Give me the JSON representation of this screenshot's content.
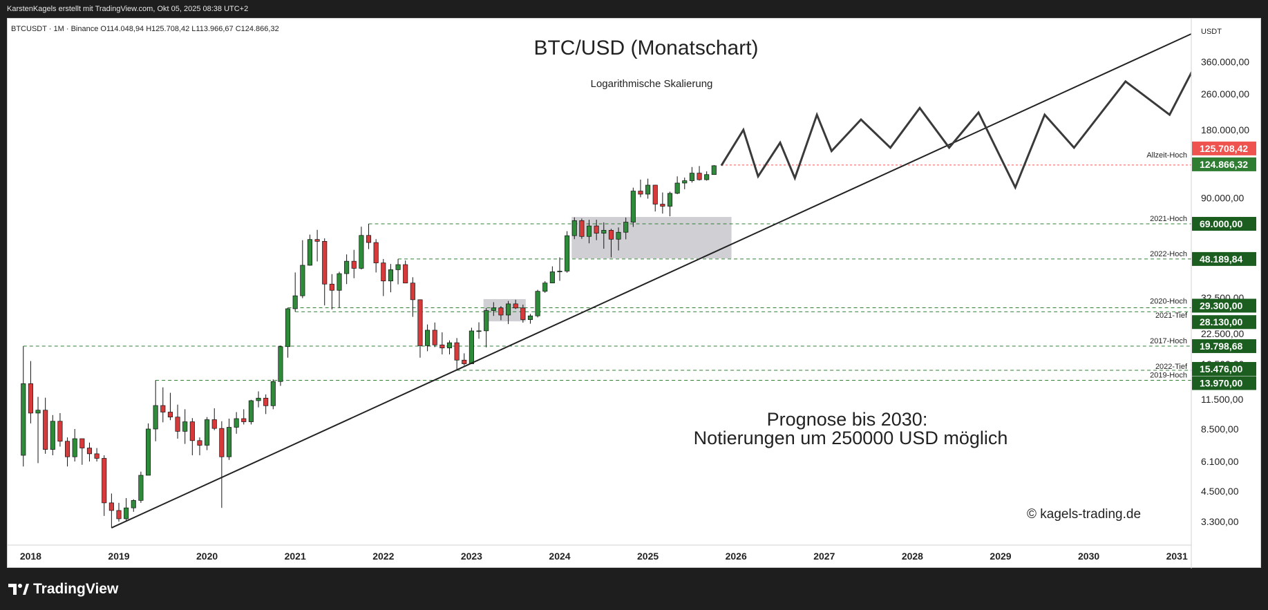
{
  "header": {
    "attribution": "KarstenKagels erstellt mit TradingView.com, Okt 05, 2025 08:38 UTC+2",
    "symbol_line": "BTCUSDT · 1M · Binance  O114.048,94  H125.708,42  L113.966,67  C124.866,32"
  },
  "brand": {
    "name": "TradingView",
    "icon": "tradingview-logo-icon"
  },
  "chart_data": {
    "type": "candlestick",
    "title": "BTC/USD (Monatschart)",
    "subtitle": "Logarithmische Skalierung",
    "currency_label": "USDT",
    "y_scale": "log",
    "ylim": [
      2600,
      560000
    ],
    "x_range": [
      "2017-11",
      "2031-03"
    ],
    "x_ticks": [
      "2018",
      "2019",
      "2020",
      "2021",
      "2022",
      "2023",
      "2024",
      "2025",
      "2026",
      "2027",
      "2028",
      "2029",
      "2030",
      "2031"
    ],
    "y_ticks": [
      "360.000,00",
      "260.000,00",
      "180.000,00",
      "90.000,00",
      "32.500,00",
      "22.500,00",
      "16.500,00",
      "11.500,00",
      "8.500,00",
      "6.100,00",
      "4.500,00",
      "3.300,00"
    ],
    "y_tick_values": [
      360000,
      260000,
      180000,
      90000,
      32500,
      22500,
      16500,
      11500,
      8500,
      6100,
      4500,
      3300
    ],
    "candles": [
      [
        "2017-12",
        6500,
        19798,
        5800,
        13500
      ],
      [
        "2018-01",
        13500,
        17000,
        9000,
        10000
      ],
      [
        "2018-02",
        10000,
        11800,
        6000,
        10300
      ],
      [
        "2018-03",
        10300,
        11700,
        6600,
        6900
      ],
      [
        "2018-04",
        6900,
        9800,
        6500,
        9200
      ],
      [
        "2018-05",
        9200,
        10000,
        7100,
        7500
      ],
      [
        "2018-06",
        7500,
        7800,
        5800,
        6400
      ],
      [
        "2018-07",
        6400,
        8500,
        6100,
        7700
      ],
      [
        "2018-08",
        7700,
        7700,
        5900,
        7000
      ],
      [
        "2018-09",
        7000,
        7400,
        6100,
        6600
      ],
      [
        "2018-10",
        6600,
        7000,
        6100,
        6300
      ],
      [
        "2018-11",
        6300,
        6500,
        3500,
        4000
      ],
      [
        "2018-12",
        4000,
        4400,
        3100,
        3700
      ],
      [
        "2019-01",
        3700,
        4000,
        3300,
        3400
      ],
      [
        "2019-02",
        3400,
        4200,
        3300,
        3800
      ],
      [
        "2019-03",
        3800,
        4150,
        3650,
        4100
      ],
      [
        "2019-04",
        4100,
        5500,
        4000,
        5300
      ],
      [
        "2019-05",
        5300,
        9000,
        5300,
        8500
      ],
      [
        "2019-06",
        8500,
        13970,
        7500,
        10800
      ],
      [
        "2019-07",
        10800,
        13000,
        9100,
        10100
      ],
      [
        "2019-08",
        10100,
        12300,
        9300,
        9600
      ],
      [
        "2019-09",
        9600,
        10900,
        7700,
        8300
      ],
      [
        "2019-10",
        8300,
        10400,
        7300,
        9150
      ],
      [
        "2019-11",
        9150,
        9500,
        6500,
        7550
      ],
      [
        "2019-12",
        7550,
        7800,
        6500,
        7200
      ],
      [
        "2020-01",
        7200,
        9600,
        6850,
        9350
      ],
      [
        "2020-02",
        9350,
        10500,
        8400,
        8550
      ],
      [
        "2020-03",
        8550,
        9200,
        3800,
        6400
      ],
      [
        "2020-04",
        6400,
        9450,
        6200,
        8650
      ],
      [
        "2020-05",
        8650,
        10100,
        8100,
        9450
      ],
      [
        "2020-06",
        9450,
        10400,
        8900,
        9150
      ],
      [
        "2020-07",
        9150,
        11450,
        8900,
        11350
      ],
      [
        "2020-08",
        11350,
        12480,
        10600,
        11650
      ],
      [
        "2020-09",
        11650,
        12100,
        9900,
        10780
      ],
      [
        "2020-10",
        10780,
        14100,
        10400,
        13800
      ],
      [
        "2020-11",
        13800,
        19900,
        13200,
        19700
      ],
      [
        "2020-12",
        19700,
        29300,
        17600,
        29000
      ],
      [
        "2021-01",
        29000,
        42000,
        28130,
        33100
      ],
      [
        "2021-02",
        33100,
        58400,
        32300,
        45200
      ],
      [
        "2021-03",
        45200,
        61800,
        45000,
        58800
      ],
      [
        "2021-04",
        58800,
        64900,
        47000,
        57700
      ],
      [
        "2021-05",
        57700,
        59500,
        30000,
        37300
      ],
      [
        "2021-06",
        37300,
        41300,
        28800,
        35000
      ],
      [
        "2021-07",
        35000,
        42300,
        29300,
        41500
      ],
      [
        "2021-08",
        41500,
        50500,
        37300,
        47100
      ],
      [
        "2021-09",
        47100,
        52900,
        39600,
        43800
      ],
      [
        "2021-10",
        43800,
        67000,
        43300,
        61300
      ],
      [
        "2021-11",
        61300,
        69000,
        53300,
        57000
      ],
      [
        "2021-12",
        57000,
        59000,
        42000,
        46300
      ],
      [
        "2022-01",
        46300,
        48189,
        33000,
        38500
      ],
      [
        "2022-02",
        38500,
        45800,
        34300,
        43200
      ],
      [
        "2022-03",
        43200,
        48189,
        37200,
        45500
      ],
      [
        "2022-04",
        45500,
        47450,
        37700,
        37700
      ],
      [
        "2022-05",
        37700,
        40000,
        26700,
        31800
      ],
      [
        "2022-06",
        31800,
        31900,
        17600,
        19900
      ],
      [
        "2022-07",
        19900,
        24700,
        18800,
        23300
      ],
      [
        "2022-08",
        23300,
        25200,
        19600,
        20050
      ],
      [
        "2022-09",
        20050,
        22800,
        18200,
        19430
      ],
      [
        "2022-10",
        19430,
        21000,
        18200,
        20500
      ],
      [
        "2022-11",
        20500,
        21500,
        15476,
        17170
      ],
      [
        "2022-12",
        17170,
        18400,
        16250,
        16540
      ],
      [
        "2023-01",
        16540,
        23900,
        16500,
        23130
      ],
      [
        "2023-02",
        23130,
        25250,
        21350,
        23150
      ],
      [
        "2023-03",
        23150,
        29200,
        19550,
        28470
      ],
      [
        "2023-04",
        28470,
        31000,
        26950,
        29250
      ],
      [
        "2023-05",
        29250,
        29800,
        25800,
        27200
      ],
      [
        "2023-06",
        27200,
        31400,
        24800,
        30480
      ],
      [
        "2023-07",
        30480,
        31800,
        28900,
        29230
      ],
      [
        "2023-08",
        29230,
        30250,
        25150,
        25950
      ],
      [
        "2023-09",
        25950,
        27500,
        24900,
        26970
      ],
      [
        "2023-10",
        26970,
        35200,
        26550,
        34650
      ],
      [
        "2023-11",
        34650,
        38450,
        34100,
        37720
      ],
      [
        "2023-12",
        37720,
        44700,
        37630,
        42280
      ],
      [
        "2024-01",
        42280,
        48970,
        38550,
        42580
      ],
      [
        "2024-02",
        42580,
        64000,
        41900,
        61130
      ],
      [
        "2024-03",
        61130,
        73700,
        59000,
        71280
      ],
      [
        "2024-04",
        71280,
        72800,
        59200,
        60650
      ],
      [
        "2024-05",
        60650,
        71900,
        56550,
        67520
      ],
      [
        "2024-06",
        67520,
        71950,
        58400,
        62700
      ],
      [
        "2024-07",
        62700,
        70000,
        53500,
        64600
      ],
      [
        "2024-08",
        64600,
        65600,
        49000,
        58970
      ],
      [
        "2024-09",
        58970,
        66500,
        52550,
        63300
      ],
      [
        "2024-10",
        63300,
        73600,
        58900,
        70200
      ],
      [
        "2024-11",
        70200,
        99800,
        66850,
        96400
      ],
      [
        "2024-12",
        96400,
        108350,
        90500,
        93400
      ],
      [
        "2025-01",
        93400,
        109350,
        89200,
        102400
      ],
      [
        "2025-02",
        102400,
        102750,
        78250,
        84350
      ],
      [
        "2025-03",
        84350,
        95000,
        76600,
        82550
      ],
      [
        "2025-04",
        82550,
        95750,
        74500,
        94200
      ],
      [
        "2025-05",
        94200,
        111980,
        93400,
        104600
      ],
      [
        "2025-06",
        104600,
        110600,
        98200,
        107150
      ],
      [
        "2025-07",
        107150,
        123200,
        105100,
        115750
      ],
      [
        "2025-08",
        115750,
        124450,
        107350,
        108250
      ],
      [
        "2025-09",
        108250,
        117900,
        107250,
        114050
      ],
      [
        "2025-10",
        114048.94,
        125708.42,
        113966.67,
        124866.32
      ]
    ],
    "horizontal_levels": [
      {
        "name": "Allzeit-Hoch",
        "value": 125708.42,
        "badge": "125.708,42",
        "color": "#ef5350",
        "style": "dotted"
      },
      {
        "name": "2021-Hoch",
        "value": 69000,
        "badge": "69.000,00",
        "color": "#2e7d32",
        "style": "dashed"
      },
      {
        "name": "2022-Hoch",
        "value": 48189.84,
        "badge": "48.189,84",
        "color": "#2e7d32",
        "style": "dashed"
      },
      {
        "name": "2020-Hoch",
        "value": 29300,
        "badge": "29.300,00",
        "color": "#2e7d32",
        "style": "dashed"
      },
      {
        "name": "2021-Tief",
        "value": 28130,
        "badge": "28.130,00",
        "color": "#2e7d32",
        "style": "dashed"
      },
      {
        "name": "2017-Hoch",
        "value": 19798.68,
        "badge": "19.798,68",
        "color": "#2e7d32",
        "style": "dashed"
      },
      {
        "name": "2022-Tief",
        "value": 15476,
        "badge": "15.476,00",
        "color": "#2e7d32",
        "style": "dashed"
      },
      {
        "name": "2019-Hoch",
        "value": 13970,
        "badge": "13.970,00",
        "color": "#2e7d32",
        "style": "dashed"
      }
    ],
    "current_price_badge": {
      "value": 124866.32,
      "label": "124.866,32",
      "color": "#2e7d32"
    },
    "trendline": {
      "from": [
        "2018-12",
        3100
      ],
      "to": [
        "2031-03",
        480000
      ]
    },
    "zigzag_forecast": [
      [
        "2025-11",
        125000
      ],
      [
        "2026-02",
        180000
      ],
      [
        "2026-04",
        112000
      ],
      [
        "2026-07",
        158000
      ],
      [
        "2026-09",
        110000
      ],
      [
        "2026-12",
        210000
      ],
      [
        "2027-02",
        145000
      ],
      [
        "2027-06",
        200000
      ],
      [
        "2027-10",
        150000
      ],
      [
        "2028-02",
        225000
      ],
      [
        "2028-06",
        150000
      ],
      [
        "2028-10",
        215000
      ],
      [
        "2029-03",
        100000
      ],
      [
        "2029-07",
        210000
      ],
      [
        "2029-11",
        150000
      ],
      [
        "2030-06",
        295000
      ],
      [
        "2030-12",
        210000
      ],
      [
        "2031-04",
        375000
      ],
      [
        "2031-06",
        315000
      ]
    ],
    "consolidation_boxes": [
      {
        "x0": "2023-03",
        "x1": "2023-08",
        "y0": 25500,
        "y1": 32000
      },
      {
        "x0": "2024-03",
        "x1": "2025-12",
        "y0": 48500,
        "y1": 74000
      }
    ],
    "annotation_forecast": [
      "Prognose bis 2030:",
      "Notierungen um 250000 USD möglich"
    ],
    "watermark": "© kagels-trading.de",
    "colors": {
      "up": "#2e8b3a",
      "down": "#d63a3a",
      "level": "#2e7d32",
      "ath": "#ef5350",
      "line": "#222222",
      "zigzag": "#3a3a3a",
      "box": "#c8c8cc"
    }
  }
}
